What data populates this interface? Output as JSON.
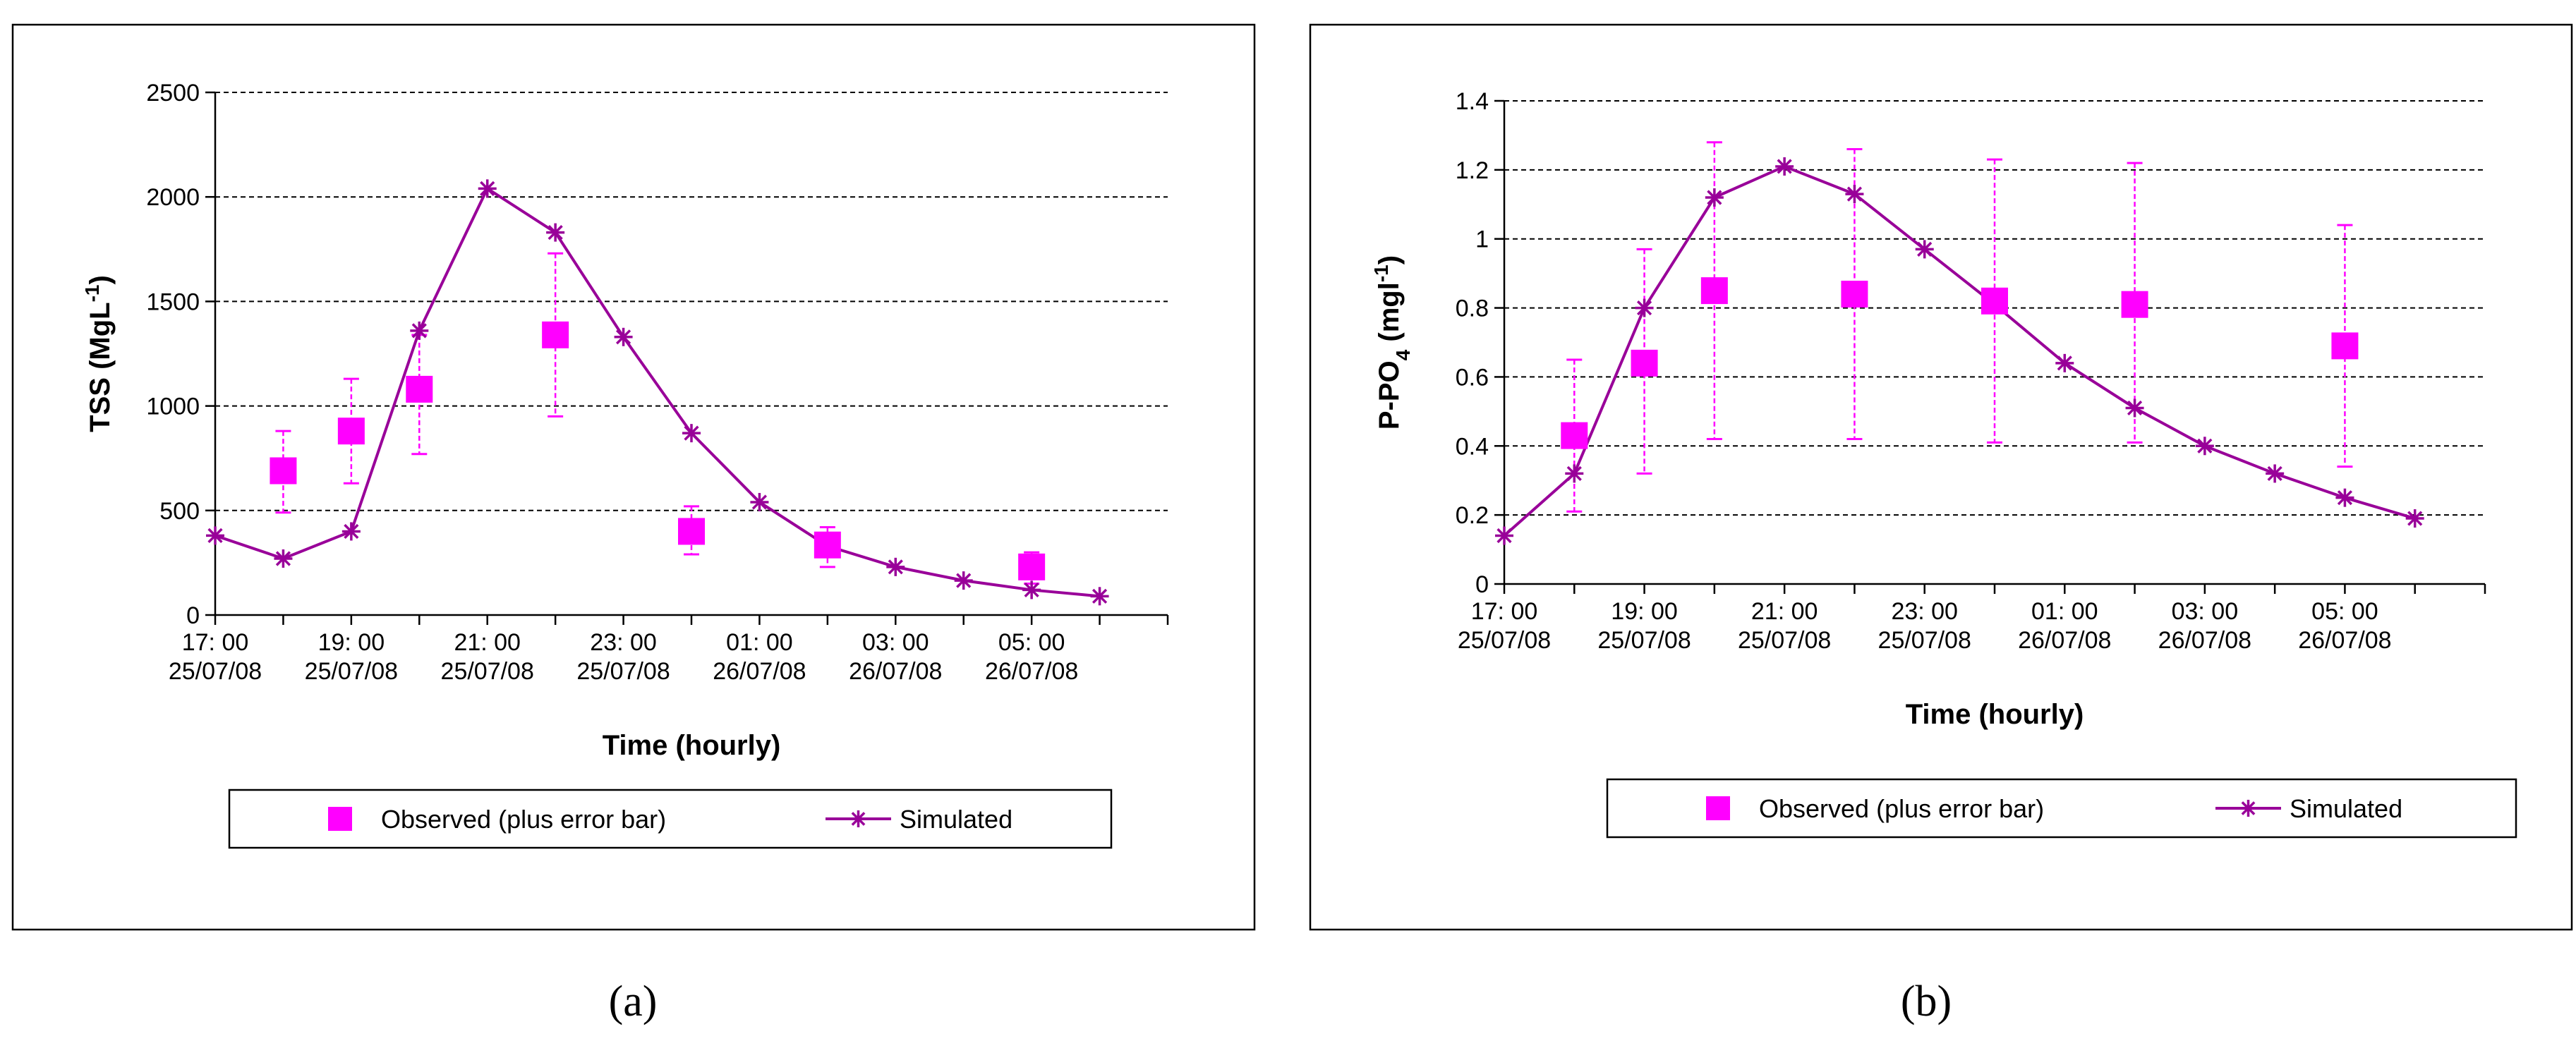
{
  "colors": {
    "observed": "#FF00FF",
    "simulated": "#990099",
    "axis": "#000000"
  },
  "chart_data": [
    {
      "type": "scatter+line",
      "caption": "(a)",
      "ylabel": "TSS (MgL-1)",
      "ylabel_parts": [
        "TSS (MgL",
        "-1",
        ")"
      ],
      "xlabel": "Time (hourly)",
      "ylim": [
        0,
        2500
      ],
      "yticks": [
        0,
        500,
        1000,
        1500,
        2000,
        2500
      ],
      "ytick_labels": [
        "0",
        "500",
        "1000",
        "1500",
        "2000",
        "2500"
      ],
      "n_hours": 14,
      "x_tick_labels": [
        {
          "h": 0,
          "time": "17: 00",
          "date": "25/07/08"
        },
        {
          "h": 2,
          "time": "19: 00",
          "date": "25/07/08"
        },
        {
          "h": 4,
          "time": "21: 00",
          "date": "25/07/08"
        },
        {
          "h": 6,
          "time": "23: 00",
          "date": "25/07/08"
        },
        {
          "h": 8,
          "time": "01: 00",
          "date": "26/07/08"
        },
        {
          "h": 10,
          "time": "03: 00",
          "date": "26/07/08"
        },
        {
          "h": 12,
          "time": "05: 00",
          "date": "26/07/08"
        }
      ],
      "simulated": {
        "name": "Simulated",
        "x": [
          0,
          1,
          2,
          3,
          4,
          5,
          6,
          7,
          8,
          9,
          10,
          11,
          12,
          13
        ],
        "y": [
          380,
          270,
          400,
          1360,
          2040,
          1830,
          1330,
          870,
          540,
          330,
          230,
          165,
          120,
          90
        ]
      },
      "observed": {
        "name": "Observed (plus error bar)",
        "x": [
          1,
          2,
          3,
          5,
          7,
          9,
          12
        ],
        "y": [
          690,
          880,
          1080,
          1340,
          400,
          335,
          230
        ],
        "lo": [
          490,
          630,
          770,
          950,
          290,
          230,
          150
        ],
        "hi": [
          880,
          1130,
          1340,
          1730,
          520,
          420,
          300
        ]
      },
      "legend": {
        "observed": "Observed (plus error bar)",
        "simulated": "Simulated"
      }
    },
    {
      "type": "scatter+line",
      "caption": "(b)",
      "ylabel": "P-PO4 (mgl-1)",
      "ylabel_parts": [
        "P-PO",
        "4",
        " (mgl",
        "-1",
        ")"
      ],
      "xlabel": "Time (hourly)",
      "ylim": [
        0,
        1.4
      ],
      "yticks": [
        0,
        0.2,
        0.4,
        0.6,
        0.8,
        1,
        1.2,
        1.4
      ],
      "ytick_labels": [
        "0",
        "0.2",
        "0.4",
        "0.6",
        "0.8",
        "1",
        "1.2",
        "1.4"
      ],
      "n_hours": 14,
      "x_tick_labels": [
        {
          "h": 0,
          "time": "17: 00",
          "date": "25/07/08"
        },
        {
          "h": 2,
          "time": "19: 00",
          "date": "25/07/08"
        },
        {
          "h": 4,
          "time": "21: 00",
          "date": "25/07/08"
        },
        {
          "h": 6,
          "time": "23: 00",
          "date": "25/07/08"
        },
        {
          "h": 8,
          "time": "01: 00",
          "date": "26/07/08"
        },
        {
          "h": 10,
          "time": "03: 00",
          "date": "26/07/08"
        },
        {
          "h": 12,
          "time": "05: 00",
          "date": "26/07/08"
        }
      ],
      "simulated": {
        "name": "Simulated",
        "x": [
          0,
          1,
          2,
          3,
          4,
          5,
          6,
          7,
          8,
          9,
          10,
          11,
          12,
          13
        ],
        "y": [
          0.14,
          0.32,
          0.8,
          1.12,
          1.21,
          1.13,
          0.97,
          0.81,
          0.64,
          0.51,
          0.4,
          0.32,
          0.25,
          0.19
        ]
      },
      "observed": {
        "name": "Observed (plus error bar)",
        "x": [
          1,
          2,
          3,
          5,
          7,
          9,
          12
        ],
        "y": [
          0.43,
          0.64,
          0.85,
          0.84,
          0.82,
          0.81,
          0.69
        ],
        "lo": [
          0.21,
          0.32,
          0.42,
          0.42,
          0.41,
          0.41,
          0.34
        ],
        "hi": [
          0.65,
          0.97,
          1.28,
          1.26,
          1.23,
          1.22,
          1.04
        ]
      },
      "legend": {
        "observed": "Observed (plus error bar)",
        "simulated": "Simulated"
      }
    }
  ]
}
